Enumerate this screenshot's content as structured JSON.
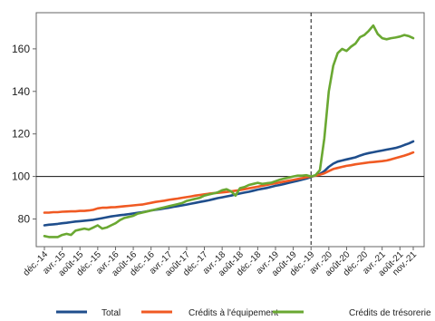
{
  "chart_data": {
    "type": "line",
    "title": "",
    "xlabel": "",
    "ylabel": "",
    "ylim": [
      67,
      177
    ],
    "yticks": [
      80,
      100,
      120,
      140,
      160
    ],
    "reference_line": 100,
    "vertical_marker": "déc.-19",
    "grid": false,
    "legend_position": "bottom",
    "x": [
      "déc.-14",
      "janv.-15",
      "févr.-15",
      "mars-15",
      "avr.-15",
      "mai-15",
      "juin-15",
      "juil.-15",
      "août-15",
      "sept.-15",
      "oct.-15",
      "nov.-15",
      "déc.-15",
      "janv.-16",
      "févr.-16",
      "mars-16",
      "avr.-16",
      "mai-16",
      "juin-16",
      "juil.-16",
      "août-16",
      "sept.-16",
      "oct.-16",
      "nov.-16",
      "déc.-16",
      "janv.-17",
      "févr.-17",
      "mars-17",
      "avr.-17",
      "mai-17",
      "juin-17",
      "juil.-17",
      "août-17",
      "sept.-17",
      "oct.-17",
      "nov.-17",
      "déc.-17",
      "janv.-18",
      "févr.-18",
      "mars-18",
      "avr.-18",
      "mai-18",
      "juin-18",
      "juil.-18",
      "août-18",
      "sept.-18",
      "oct.-18",
      "nov.-18",
      "déc.-18",
      "janv.-19",
      "févr.-19",
      "mars-19",
      "avr.-19",
      "mai-19",
      "juin-19",
      "juil.-19",
      "août-19",
      "sept.-19",
      "oct.-19",
      "nov.-19",
      "déc.-19",
      "janv.-20",
      "févr.-20",
      "mars-20",
      "avr.-20",
      "mai-20",
      "juin-20",
      "juil.-20",
      "août-20",
      "sept.-20",
      "oct.-20",
      "nov.-20",
      "déc.-20",
      "janv.-21",
      "févr.-21",
      "mars-21",
      "avr.-21",
      "mai-21",
      "juin-21",
      "juil.-21",
      "août-21",
      "sept.-21",
      "oct.-21",
      "nov.-21"
    ],
    "xtick_labels": [
      "déc.-14",
      "avr.-15",
      "août-15",
      "déc.-15",
      "avr.-16",
      "août-16",
      "déc.-16",
      "avr.-17",
      "août-17",
      "déc.-17",
      "avr.-18",
      "août-18",
      "déc.-18",
      "avr.-19",
      "août-19",
      "déc.-19",
      "avr.-20",
      "août-20",
      "déc.-20",
      "avr.-21",
      "août-21",
      "nov.-21"
    ],
    "series": [
      {
        "name": "Total",
        "color": "#1f4e8c",
        "values": [
          77,
          77.3,
          77.5,
          77.7,
          78,
          78.2,
          78.5,
          78.8,
          79,
          79.2,
          79.4,
          79.6,
          80,
          80.4,
          80.8,
          81.2,
          81.5,
          81.8,
          82,
          82.3,
          82.6,
          82.9,
          83.2,
          83.6,
          84,
          84.3,
          84.6,
          85,
          85.3,
          85.7,
          86,
          86.4,
          86.8,
          87.2,
          87.6,
          88,
          88.4,
          88.8,
          89.3,
          89.8,
          90.2,
          90.6,
          91,
          91.5,
          92,
          92.4,
          92.8,
          93.3,
          93.8,
          94.2,
          94.6,
          95.1,
          95.6,
          96,
          96.5,
          97,
          97.5,
          98,
          98.5,
          99,
          99.8,
          100.5,
          101.2,
          102.5,
          104.5,
          106,
          107,
          107.5,
          108,
          108.5,
          109,
          109.8,
          110.5,
          111,
          111.4,
          111.8,
          112.2,
          112.6,
          113,
          113.4,
          114,
          114.8,
          115.5,
          116.5
        ]
      },
      {
        "name": "Crédits à l'équipement",
        "color": "#f05a23",
        "values": [
          83,
          83,
          83.2,
          83.2,
          83.4,
          83.5,
          83.6,
          83.6,
          83.8,
          83.8,
          84,
          84.3,
          85,
          85.3,
          85.3,
          85.5,
          85.6,
          85.8,
          86,
          86.2,
          86.4,
          86.6,
          86.8,
          87.2,
          87.6,
          88,
          88.3,
          88.6,
          89,
          89.3,
          89.6,
          90,
          90.3,
          90.6,
          91,
          91.3,
          91.6,
          91.9,
          92.1,
          92.3,
          92.5,
          92.7,
          93,
          93.3,
          93.6,
          94,
          94.4,
          94.8,
          95.2,
          95.6,
          96,
          96.4,
          96.8,
          97.2,
          97.6,
          98,
          98.4,
          98.8,
          99.2,
          99.6,
          100,
          100.4,
          100.8,
          101.5,
          102.5,
          103.5,
          104,
          104.5,
          105,
          105.3,
          105.7,
          106,
          106.3,
          106.6,
          106.8,
          107,
          107.2,
          107.5,
          108,
          108.6,
          109.2,
          109.8,
          110.5,
          111.3
        ]
      },
      {
        "name": "Crédits de trésorerie",
        "color": "#6aa832",
        "values": [
          72,
          71.5,
          71.5,
          71.5,
          72.5,
          73,
          72.5,
          74.5,
          75,
          75.5,
          75,
          76,
          77,
          75.5,
          76,
          77,
          78,
          79.5,
          80.5,
          81,
          81.5,
          82.5,
          83,
          83.5,
          84,
          84.5,
          85,
          85.5,
          86,
          86.5,
          87,
          87.5,
          88.5,
          89,
          89.5,
          90,
          91,
          91.5,
          92,
          92.5,
          93.5,
          94,
          93,
          91,
          94.5,
          95,
          96,
          96.5,
          97,
          96.5,
          96.8,
          97,
          97.8,
          98.5,
          99,
          99.5,
          100,
          100.4,
          100.4,
          100.6,
          100,
          100.6,
          103,
          118,
          140,
          152,
          158,
          160,
          159,
          161,
          162.5,
          165.5,
          166.5,
          168.5,
          171,
          167,
          165,
          164.5,
          165,
          165.3,
          165.8,
          166.5,
          166,
          165
        ]
      }
    ]
  }
}
